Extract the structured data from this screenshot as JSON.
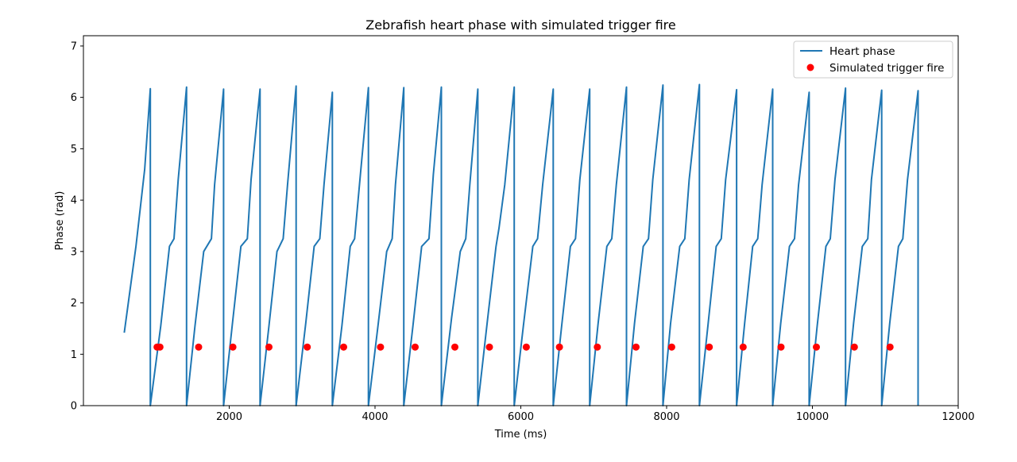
{
  "chart_data": {
    "type": "line",
    "title": "Zebrafish heart phase with simulated trigger fire",
    "xlabel": "Time (ms)",
    "ylabel": "Phase (rad)",
    "xlim": [
      0,
      12000
    ],
    "ylim": [
      0,
      7.2
    ],
    "x_ticks": [
      2000,
      4000,
      6000,
      8000,
      10000,
      12000
    ],
    "x_tick_labels": [
      "2000",
      "4000",
      "6000",
      "8000",
      "10000",
      "12000"
    ],
    "y_ticks": [
      0,
      1,
      2,
      3,
      4,
      5,
      6,
      7
    ],
    "y_tick_labels": [
      "0",
      "1",
      "2",
      "3",
      "4",
      "5",
      "6",
      "7"
    ],
    "grid": false,
    "legend_position": "top-right",
    "colors": {
      "line": "#1f77b4",
      "scatter": "#ff0000"
    },
    "series": [
      {
        "name": "Heart phase",
        "kind": "line",
        "x": [
          560,
          720,
          840,
          918,
          918,
          1060,
          1180,
          1243,
          1300,
          1415,
          1415,
          1530,
          1650,
          1756,
          1800,
          1923,
          1923,
          2040,
          2160,
          2248,
          2300,
          2423,
          2423,
          2545,
          2655,
          2740,
          2800,
          2918,
          2918,
          3050,
          3165,
          3243,
          3300,
          3415,
          3415,
          3545,
          3660,
          3720,
          3800,
          3910,
          3910,
          4045,
          4160,
          4235,
          4280,
          4395,
          4395,
          4520,
          4640,
          4740,
          4800,
          4910,
          4910,
          5050,
          5170,
          5245,
          5300,
          5410,
          5410,
          5545,
          5660,
          5700,
          5780,
          5910,
          5910,
          6035,
          6165,
          6230,
          6300,
          6445,
          6445,
          6560,
          6680,
          6750,
          6810,
          6945,
          6945,
          7060,
          7180,
          7248,
          7310,
          7450,
          7450,
          7560,
          7680,
          7752,
          7810,
          7950,
          7950,
          8055,
          8180,
          8250,
          8310,
          8450,
          8450,
          8570,
          8680,
          8750,
          8810,
          8960,
          8960,
          9070,
          9180,
          9250,
          9310,
          9455,
          9455,
          9565,
          9685,
          9755,
          9810,
          9955,
          9955,
          10065,
          10185,
          10245,
          10310,
          10455,
          10455,
          10565,
          10685,
          10760,
          10810,
          10950,
          10950,
          11060,
          11180,
          11240,
          11305,
          11450,
          11450
        ],
        "y": [
          1.42,
          3.1,
          4.6,
          6.17,
          0,
          1.55,
          3.1,
          3.25,
          4.4,
          6.2,
          0,
          1.55,
          3.0,
          3.25,
          4.3,
          6.16,
          0,
          1.55,
          3.1,
          3.25,
          4.4,
          6.16,
          0,
          1.55,
          3.0,
          3.25,
          4.3,
          6.22,
          0,
          1.6,
          3.1,
          3.25,
          4.3,
          6.1,
          0,
          1.55,
          3.1,
          3.25,
          4.5,
          6.19,
          0,
          1.6,
          3.0,
          3.25,
          4.3,
          6.19,
          0,
          1.55,
          3.1,
          3.25,
          4.5,
          6.2,
          0,
          1.7,
          3.0,
          3.25,
          4.3,
          6.16,
          0,
          1.7,
          3.1,
          3.45,
          4.3,
          6.2,
          0,
          1.55,
          3.1,
          3.25,
          4.3,
          6.16,
          0,
          1.55,
          3.1,
          3.25,
          4.4,
          6.16,
          0,
          1.6,
          3.1,
          3.25,
          4.3,
          6.2,
          0,
          1.6,
          3.1,
          3.25,
          4.4,
          6.24,
          0,
          1.6,
          3.1,
          3.25,
          4.4,
          6.25,
          0,
          1.6,
          3.1,
          3.25,
          4.4,
          6.15,
          0,
          1.6,
          3.1,
          3.25,
          4.3,
          6.16,
          0,
          1.6,
          3.1,
          3.25,
          4.3,
          6.1,
          0,
          1.55,
          3.1,
          3.25,
          4.4,
          6.18,
          0,
          1.6,
          3.1,
          3.25,
          4.4,
          6.14,
          0,
          1.6,
          3.1,
          3.25,
          4.4,
          6.13,
          0
        ]
      },
      {
        "name": "Simulated trigger fire",
        "kind": "scatter",
        "x": [
          1010,
          1050,
          1580,
          2050,
          2545,
          3070,
          3570,
          4075,
          4550,
          5095,
          5570,
          6075,
          6530,
          7050,
          7580,
          8070,
          8585,
          9050,
          9570,
          10055,
          10575,
          11065
        ],
        "y": [
          1.14,
          1.14,
          1.14,
          1.14,
          1.14,
          1.14,
          1.14,
          1.14,
          1.14,
          1.14,
          1.14,
          1.14,
          1.14,
          1.14,
          1.14,
          1.14,
          1.14,
          1.14,
          1.14,
          1.14,
          1.14,
          1.14
        ]
      }
    ]
  }
}
